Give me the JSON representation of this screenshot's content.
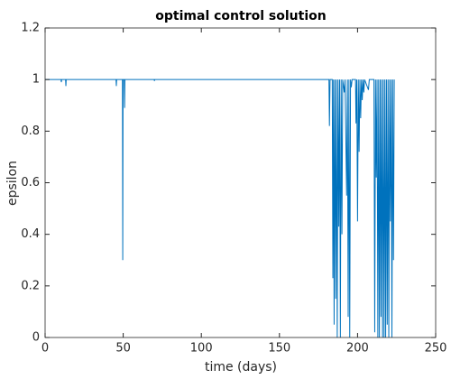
{
  "chart_data": {
    "type": "line",
    "title": "optimal control solution",
    "x_label": "time (days)",
    "y_label": "epsilon",
    "xlim": [
      0,
      250
    ],
    "ylim": [
      0,
      1.2
    ],
    "xticks": [
      0,
      50,
      100,
      150,
      200,
      250
    ],
    "yticks": [
      0,
      0.2,
      0.4,
      0.6,
      0.8,
      1,
      1.2
    ],
    "series": [
      {
        "color": "#0072bd",
        "x": [
          0,
          10.2,
          10.4,
          10.6,
          13.1,
          13.3,
          13.5,
          45.4,
          45.6,
          45.8,
          49.5,
          49.7,
          49.9,
          50.7,
          50.9,
          51.1,
          69.8,
          70,
          70.2,
          181.7,
          182,
          182.4,
          183.8,
          184.2,
          184.6,
          185,
          185.5,
          186,
          186.5,
          187,
          187.5,
          188,
          188.5,
          189,
          189.5,
          190,
          190.5,
          191.5,
          192,
          193,
          193.5,
          194,
          194.5,
          195,
          195.5,
          196,
          196.5,
          198.7,
          199,
          199.5,
          200,
          200.5,
          201,
          201.5,
          202,
          202.5,
          203,
          203.5,
          204,
          204.5,
          207,
          207.5,
          210.5,
          211,
          211.5,
          212,
          212.5,
          213,
          213.5,
          214,
          214.5,
          215,
          215.5,
          216,
          216.5,
          217,
          217.5,
          218,
          218.5,
          219,
          219.5,
          220,
          220.5,
          221,
          221.5,
          222,
          222.5,
          223,
          223.5
        ],
        "values": [
          1,
          1,
          0.99,
          1,
          1,
          0.975,
          1,
          1,
          0.975,
          1,
          1,
          0.3,
          1,
          1,
          0.89,
          1,
          1,
          0.995,
          1,
          1,
          0.82,
          1,
          1,
          0.23,
          1,
          0.05,
          1,
          0.15,
          1,
          0,
          1,
          0.43,
          1,
          0,
          1,
          0.4,
          1,
          0.95,
          1,
          0.55,
          1,
          0.08,
          1,
          0,
          1,
          0.97,
          1,
          1,
          0.83,
          1,
          0.45,
          1,
          0.72,
          1,
          0.85,
          1,
          0.92,
          1,
          0.95,
          1,
          0.96,
          1,
          1,
          0.02,
          1,
          0.62,
          1,
          0,
          1,
          0,
          1,
          0.08,
          1,
          0,
          1,
          0,
          1,
          0,
          1,
          0.05,
          1,
          0,
          1,
          0.45,
          1,
          0,
          1,
          0.3,
          1
        ]
      }
    ]
  }
}
